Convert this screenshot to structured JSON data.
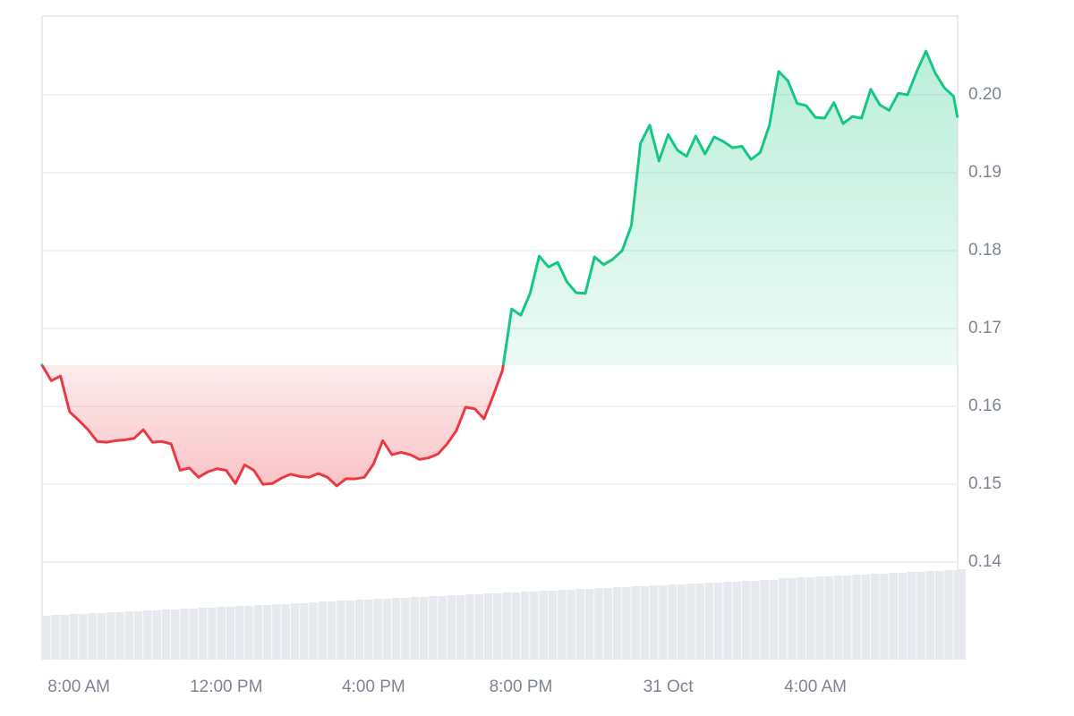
{
  "chart_data": {
    "type": "line",
    "x": [
      7,
      7.25,
      7.5,
      7.75,
      8,
      8.25,
      8.5,
      8.75,
      9,
      9.25,
      9.5,
      9.75,
      10,
      10.25,
      10.5,
      10.75,
      11,
      11.25,
      11.5,
      11.75,
      12,
      12.25,
      12.5,
      12.75,
      13,
      13.25,
      13.5,
      13.75,
      14,
      14.25,
      14.5,
      14.75,
      15,
      15.25,
      15.5,
      15.75,
      16,
      16.25,
      16.5,
      16.75,
      17,
      17.25,
      17.5,
      17.75,
      18,
      18.25,
      18.5,
      18.75,
      19,
      19.25,
      19.5,
      19.75,
      20,
      20.25,
      20.5,
      20.75,
      21,
      21.25,
      21.5,
      21.75,
      22,
      22.25,
      22.5,
      22.75,
      23,
      23.25,
      23.5,
      23.75,
      24,
      24.25,
      24.5,
      24.75,
      25,
      25.25,
      25.5,
      25.75,
      26,
      26.25,
      26.5,
      26.75,
      27,
      27.25,
      27.5,
      27.75,
      28,
      28.25,
      28.5,
      28.75,
      29,
      29.25,
      29.5,
      29.75,
      30,
      30.25,
      30.5,
      30.75,
      31,
      31.25,
      31.5,
      31.75,
      31.85
    ],
    "values": [
      0.1653,
      0.1633,
      0.1639,
      0.1593,
      0.1582,
      0.157,
      0.1555,
      0.1554,
      0.1556,
      0.1557,
      0.1559,
      0.157,
      0.1554,
      0.1555,
      0.1552,
      0.1518,
      0.1521,
      0.1509,
      0.1516,
      0.152,
      0.1518,
      0.1501,
      0.1525,
      0.1518,
      0.15,
      0.1501,
      0.1508,
      0.1513,
      0.151,
      0.1509,
      0.1514,
      0.1509,
      0.1498,
      0.1507,
      0.1507,
      0.1509,
      0.1526,
      0.1556,
      0.1538,
      0.1541,
      0.1538,
      0.1532,
      0.1534,
      0.1539,
      0.1552,
      0.1569,
      0.1599,
      0.1597,
      0.1584,
      0.1614,
      0.1646,
      0.1725,
      0.1717,
      0.1745,
      0.1793,
      0.1779,
      0.1785,
      0.176,
      0.1746,
      0.1745,
      0.1792,
      0.1782,
      0.1789,
      0.18,
      0.1832,
      0.1938,
      0.1961,
      0.1915,
      0.1949,
      0.1929,
      0.1921,
      0.1947,
      0.1924,
      0.1946,
      0.194,
      0.1932,
      0.1934,
      0.1917,
      0.1926,
      0.1961,
      0.203,
      0.2018,
      0.1989,
      0.1986,
      0.1971,
      0.197,
      0.199,
      0.1963,
      0.1972,
      0.197,
      0.2007,
      0.1987,
      0.198,
      0.2002,
      0.2,
      0.203,
      0.2056,
      0.2028,
      0.2009,
      0.1998,
      0.1972
    ],
    "volume": [
      49,
      50,
      50,
      51,
      51,
      52,
      52,
      53,
      53,
      54,
      54,
      55,
      55,
      56,
      56,
      57,
      57,
      58,
      58,
      59,
      59,
      60,
      60,
      61,
      61,
      62,
      62,
      63,
      63,
      64,
      65,
      65,
      66,
      66,
      67,
      67,
      68,
      68,
      69,
      69,
      70,
      70,
      71,
      71,
      72,
      72,
      73,
      73,
      74,
      74,
      75,
      75,
      76,
      76,
      77,
      77,
      78,
      78,
      79,
      79,
      80,
      80,
      81,
      81,
      82,
      82,
      83,
      83,
      84,
      84,
      85,
      85,
      86,
      86,
      87,
      87,
      88,
      88,
      89,
      89,
      91,
      91,
      92,
      92,
      93,
      93,
      94,
      94,
      95,
      95,
      96,
      96,
      97,
      97,
      98,
      98,
      99,
      99,
      100,
      100,
      101
    ],
    "up_color": "#16c784",
    "down_color": "#ea3943",
    "volume_color": "#e6eaef",
    "xlim": [
      7,
      31.86
    ],
    "xticks": [
      {
        "value": 8,
        "label": "8:00 AM"
      },
      {
        "value": 12,
        "label": "12:00 PM"
      },
      {
        "value": 16,
        "label": "4:00 PM"
      },
      {
        "value": 20,
        "label": "8:00 PM"
      },
      {
        "value": 24,
        "label": "31 Oct"
      },
      {
        "value": 28,
        "label": "4:00 AM"
      }
    ],
    "ylim": [
      0.1275,
      0.2101
    ],
    "yticks": [
      0.14,
      0.15,
      0.16,
      0.17,
      0.18,
      0.19,
      {
        "value": 0.2,
        "label": "0.20"
      }
    ],
    "grid": true
  }
}
